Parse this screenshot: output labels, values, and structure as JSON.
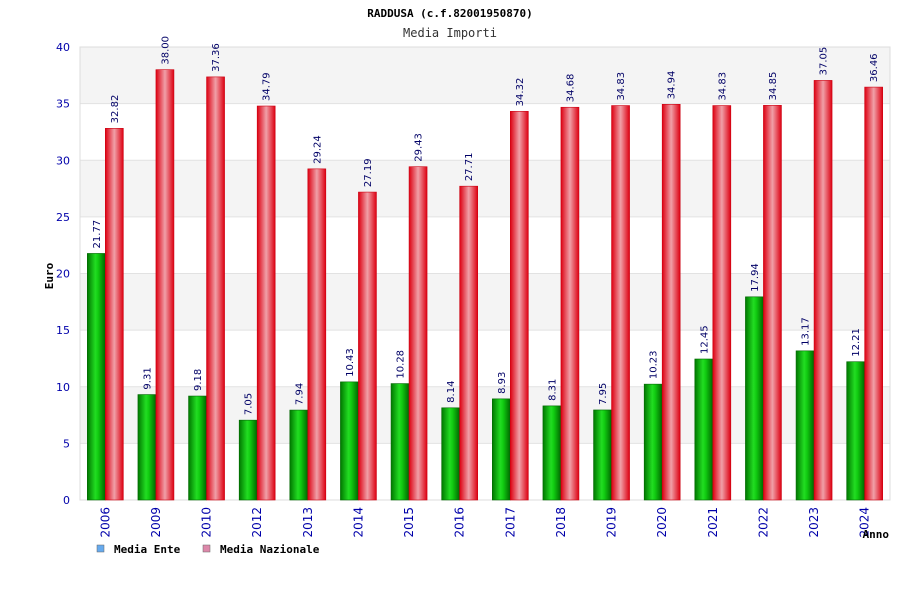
{
  "chart_data": {
    "type": "bar",
    "title": "RADDUSA (c.f.82001950870)",
    "subtitle": "Media Importi",
    "xlabel": "Anno",
    "ylabel": "Euro",
    "ylim": [
      0,
      40
    ],
    "yticks": [
      0,
      5,
      10,
      15,
      20,
      25,
      30,
      35,
      40
    ],
    "grid": true,
    "legend_position": "bottom-left",
    "categories": [
      "2006",
      "2009",
      "2010",
      "2012",
      "2013",
      "2014",
      "2015",
      "2016",
      "2017",
      "2018",
      "2019",
      "2020",
      "2021",
      "2022",
      "2023",
      "2024"
    ],
    "series": [
      {
        "name": "Media Ente",
        "color": "#00aa00",
        "legend_color": "#66aaee",
        "values": [
          21.77,
          9.31,
          9.18,
          7.05,
          7.94,
          10.43,
          10.28,
          8.14,
          8.93,
          8.31,
          7.95,
          10.23,
          12.45,
          17.94,
          13.17,
          12.21
        ],
        "labels": [
          "21.77",
          "9.31",
          "9.18",
          "7.05",
          "7.94",
          "10.43",
          "10.28",
          "8.14",
          "8.93",
          "8.31",
          "7.95",
          "10.23",
          "12.45",
          "17.94",
          "13.17",
          "12.21"
        ]
      },
      {
        "name": "Media Nazionale",
        "color": "#ee1122",
        "legend_color": "#dd88aa",
        "values": [
          32.82,
          38.0,
          37.36,
          34.79,
          29.24,
          27.19,
          29.43,
          27.71,
          34.32,
          34.68,
          34.83,
          34.94,
          34.83,
          34.85,
          37.05,
          36.46
        ],
        "labels": [
          "32.82",
          "38.00",
          "37.36",
          "34.79",
          "29.24",
          "27.19",
          "29.43",
          "27.71",
          "34.32",
          "34.68",
          "34.83",
          "34.94",
          "34.83",
          "34.85",
          "37.05",
          "36.46"
        ]
      }
    ]
  }
}
